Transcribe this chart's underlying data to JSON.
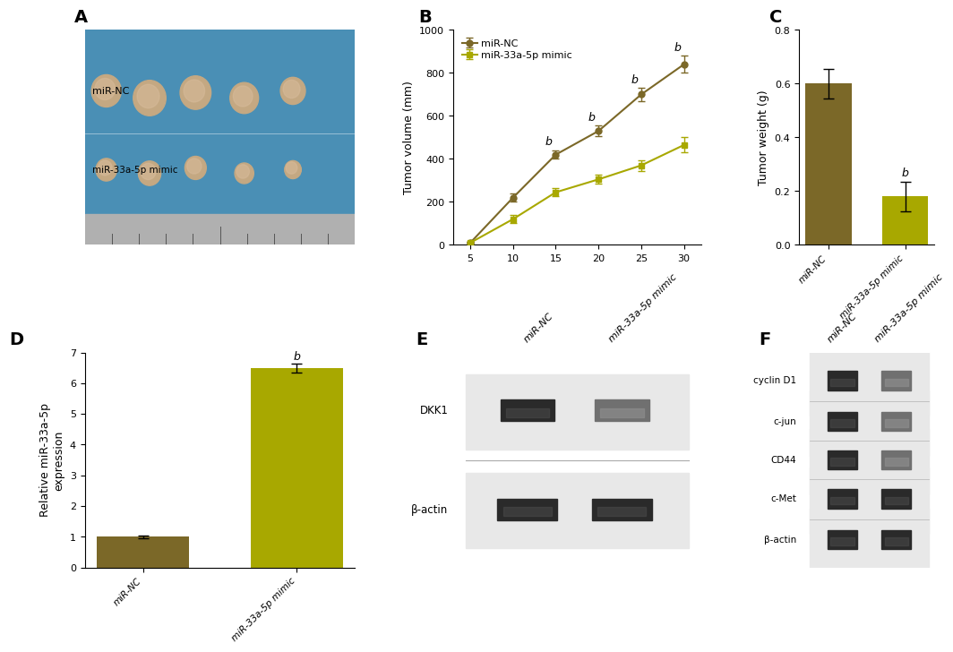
{
  "panel_B": {
    "x": [
      5,
      10,
      15,
      20,
      25,
      30
    ],
    "miR_NC_y": [
      10,
      220,
      420,
      530,
      700,
      840
    ],
    "miR_NC_err": [
      5,
      20,
      20,
      25,
      30,
      40
    ],
    "miR_mimic_y": [
      10,
      120,
      245,
      305,
      370,
      465
    ],
    "miR_mimic_err": [
      5,
      20,
      20,
      20,
      25,
      35
    ],
    "ylabel": "Tumor volume (mm)",
    "ylim": [
      0,
      1000
    ],
    "yticks": [
      0,
      200,
      400,
      600,
      800,
      1000
    ],
    "xticks": [
      5,
      10,
      15,
      20,
      25,
      30
    ],
    "sig_points": [
      15,
      20,
      25,
      30
    ],
    "color_NC": "#7B6828",
    "color_mimic": "#A8A800",
    "legend_NC": "miR-NC",
    "legend_mimic": "miR-33a-5p mimic"
  },
  "panel_C": {
    "categories": [
      "miR-NC",
      "miR-33a-5p mimic"
    ],
    "values": [
      0.6,
      0.18
    ],
    "errors": [
      0.055,
      0.055
    ],
    "ylabel": "Tumor weight (g)",
    "ylim": [
      0,
      0.8
    ],
    "yticks": [
      0.0,
      0.2,
      0.4,
      0.6,
      0.8
    ],
    "colors": [
      "#7B6828",
      "#A8A800"
    ],
    "sig_label": "b"
  },
  "panel_D": {
    "categories": [
      "miR-NC",
      "miR-33a-5p mimic"
    ],
    "values": [
      1.0,
      6.5
    ],
    "errors": [
      0.05,
      0.15
    ],
    "ylabel": "Relative miR-33a-5p\nexpression",
    "ylim": [
      0,
      7
    ],
    "yticks": [
      0,
      1,
      2,
      3,
      4,
      5,
      6,
      7
    ],
    "colors": [
      "#7B6828",
      "#A8A800"
    ],
    "sig_label": "b"
  },
  "bg_color": "#4A8FB5",
  "tumor_color": "#C4A882",
  "ruler_color": "#B0B0B0",
  "label_color": "#000000",
  "panel_label_fontsize": 14,
  "axis_fontsize": 9,
  "tick_fontsize": 8
}
